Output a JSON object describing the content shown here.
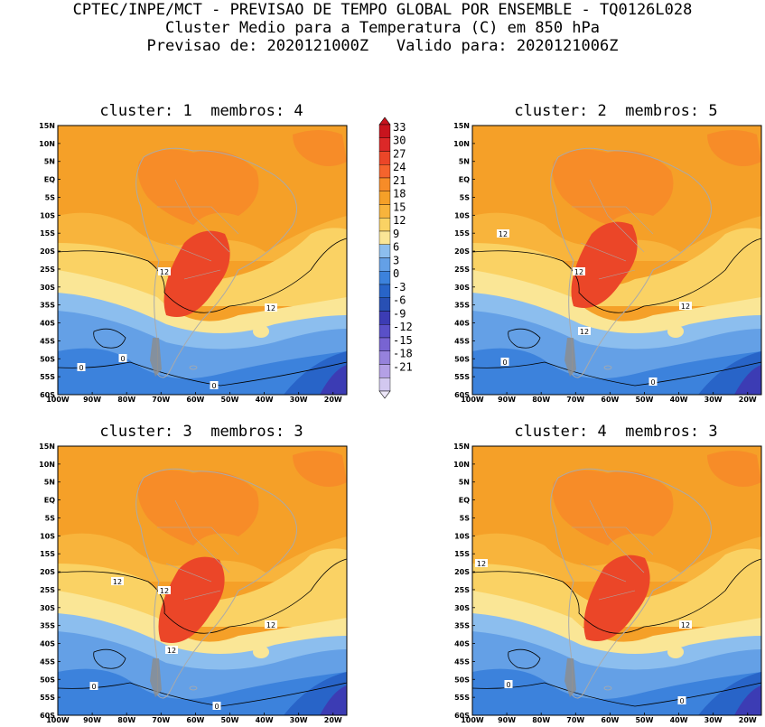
{
  "header": {
    "line1": "CPTEC/INPE/MCT - PREVISAO DE TEMPO GLOBAL POR ENSEMBLE - TQ0126L028",
    "line2": "Cluster Medio para a Temperatura (C) em 850 hPa",
    "line3": "Previsao de: 2020121000Z   Valido para: 2020121006Z"
  },
  "panels": [
    {
      "title": "cluster: 1  membros: 4",
      "contour_labels": [
        "12",
        "12",
        "0",
        "0",
        "0"
      ]
    },
    {
      "title": "cluster: 2  membros: 5",
      "contour_labels": [
        "12",
        "12",
        "12",
        "12",
        "0",
        "0"
      ]
    },
    {
      "title": "cluster: 3  membros: 3",
      "contour_labels": [
        "12",
        "12",
        "12",
        "12",
        "0",
        "0"
      ]
    },
    {
      "title": "cluster: 4  membros: 3",
      "contour_labels": [
        "12",
        "12",
        "0",
        "0"
      ]
    }
  ],
  "axes": {
    "lat_labels": [
      "15N",
      "10N",
      "5N",
      "EQ",
      "5S",
      "10S",
      "15S",
      "20S",
      "25S",
      "30S",
      "35S",
      "40S",
      "45S",
      "50S",
      "55S",
      "60S"
    ],
    "lon_labels": [
      "100W",
      "90W",
      "80W",
      "70W",
      "60W",
      "50W",
      "40W",
      "30W",
      "20W"
    ]
  },
  "colorbar": {
    "labels": [
      "33",
      "30",
      "27",
      "24",
      "21",
      "18",
      "15",
      "12",
      "9",
      "6",
      "3",
      "0",
      "-3",
      "-6",
      "-9",
      "-12",
      "-15",
      "-18",
      "-21"
    ],
    "colors": [
      "#c8141e",
      "#dc2828",
      "#eb4628",
      "#f5642d",
      "#f78c28",
      "#f5a028",
      "#f8b43c",
      "#fad264",
      "#fae696",
      "#8cbeee",
      "#64a0e6",
      "#3c82dc",
      "#2864c8",
      "#2850b4",
      "#3c3cb4",
      "#5a50c8",
      "#7864d2",
      "#9682dc",
      "#b4a0e6",
      "#d2c8f0"
    ]
  },
  "map_colors": {
    "c18": "#f5a028",
    "c15": "#f8b43c",
    "c21": "#f78c28",
    "c24": "#eb4628",
    "c12": "#fad264",
    "c9": "#fae696",
    "c6": "#8cbeee",
    "c3": "#64a0e6",
    "c0": "#3c82dc",
    "cm3": "#2864c8",
    "cm6": "#3c3cb4",
    "coast": "#aaaaaa"
  }
}
